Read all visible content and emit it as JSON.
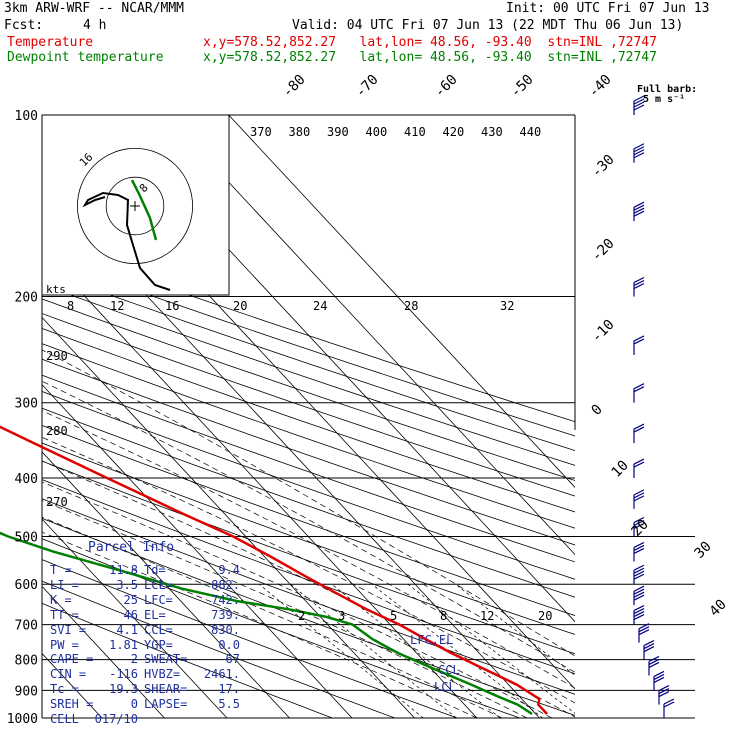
{
  "header": {
    "model": "3km ARW-WRF -- NCAR/MMM",
    "init": "Init: 00 UTC Fri 07 Jun 13",
    "fcst_label": "Fcst:",
    "fcst_value": "4 h",
    "valid": "Valid: 04 UTC Fri 07 Jun 13 (22 MDT Thu 06 Jun 13)",
    "temp_label": "Temperature",
    "temp_loc": "x,y=578.52,852.27   lat,lon= 48.56, -93.40  stn=INL ,72747",
    "dew_label": "Dewpoint temperature",
    "dew_loc": "x,y=578.52,852.27   lat,lon= 48.56, -93.40  stn=INL ,72747"
  },
  "barb_legend": {
    "line1": "Full barb:",
    "line2": "5 m s⁻¹"
  },
  "hodograph_label": "kts",
  "parcel": {
    "title": "Parcel Info",
    "rows": [
      {
        "k1": "T",
        "v1": "11.8",
        "k2": "Td",
        "v2": "9.4"
      },
      {
        "k1": "LI",
        "v1": "3.5",
        "k2": "LCL",
        "v2": "882."
      },
      {
        "k1": "K",
        "v1": "25",
        "k2": "LFC",
        "v2": "742."
      },
      {
        "k1": "TT",
        "v1": "46",
        "k2": "EL",
        "v2": "739."
      },
      {
        "k1": "SVI",
        "v1": "4.1",
        "k2": "CCL",
        "v2": "830."
      },
      {
        "k1": "PW",
        "v1": "1.81",
        "k2": "YGP",
        "v2": "0.0"
      },
      {
        "k1": "CAPE",
        "v1": "2",
        "k2": "SWEAT",
        "v2": "67"
      },
      {
        "k1": "CIN",
        "v1": "-116",
        "k2": "HVBZ",
        "v2": "2461."
      },
      {
        "k1": "Tc",
        "v1": "19.3",
        "k2": "SHEAR",
        "v2": "17."
      },
      {
        "k1": "SREH",
        "v1": "0",
        "k2": "LAPSE",
        "v2": "5.5"
      },
      {
        "k1": "CELL",
        "v1": "017/10",
        "k2": "",
        "v2": ""
      }
    ]
  },
  "levels": {
    "lfc": "LFC,EL",
    "ccl": "CCL",
    "lcl": "LCL"
  },
  "chart_data": {
    "type": "line",
    "subtype": "skew-t log-p sounding",
    "y_axis": {
      "label": "",
      "scale": "log",
      "units": "hPa",
      "range": [
        1000,
        100
      ],
      "ticks": [
        100,
        200,
        300,
        400,
        500,
        600,
        700,
        800,
        900,
        1000
      ]
    },
    "isotherm_labels": [
      -80,
      -70,
      -60,
      -50,
      -40,
      -30,
      -20,
      -10,
      0,
      10,
      20,
      30,
      40
    ],
    "theta_labels": [
      370,
      380,
      390,
      400,
      410,
      420,
      430,
      440
    ],
    "dry_adiabat_labels": [
      290,
      280,
      270
    ],
    "mixing_ratio_labels": [
      2,
      3,
      5,
      8,
      12,
      20
    ],
    "upper_axis_labels": [
      8,
      12,
      16,
      20,
      24,
      28,
      32
    ],
    "series": [
      {
        "name": "Temperature",
        "color": "#e00000",
        "points": [
          [
            985,
            11.8
          ],
          [
            950,
            11.8
          ],
          [
            930,
            12.8
          ],
          [
            880,
            11.3
          ],
          [
            830,
            8.5
          ],
          [
            780,
            5.5
          ],
          [
            740,
            3.5
          ],
          [
            700,
            1.5
          ],
          [
            660,
            -1.5
          ],
          [
            620,
            -4.0
          ],
          [
            580,
            -6.5
          ],
          [
            540,
            -9.0
          ],
          [
            500,
            -12.0
          ],
          [
            460,
            -16.5
          ],
          [
            400,
            -23.5
          ],
          [
            350,
            -30.0
          ],
          [
            300,
            -37.5
          ],
          [
            265,
            -44.0
          ],
          [
            240,
            -49.0
          ],
          [
            220,
            -50.0
          ],
          [
            200,
            -51.0
          ],
          [
            180,
            -52.5
          ],
          [
            160,
            -55.5
          ],
          [
            140,
            -59.0
          ],
          [
            125,
            -59.5
          ],
          [
            110,
            -59.0
          ],
          [
            100,
            -59.0
          ]
        ]
      },
      {
        "name": "Dewpoint temperature",
        "color": "#008000",
        "points": [
          [
            985,
            9.4
          ],
          [
            950,
            8.5
          ],
          [
            920,
            6.5
          ],
          [
            880,
            4.0
          ],
          [
            830,
            0.5
          ],
          [
            780,
            -3.0
          ],
          [
            740,
            -5.0
          ],
          [
            700,
            -6.0
          ],
          [
            680,
            -9.0
          ],
          [
            660,
            -14.0
          ],
          [
            640,
            -21.0
          ],
          [
            610,
            -28.0
          ],
          [
            570,
            -35.0
          ],
          [
            530,
            -43.0
          ],
          [
            500,
            -48.0
          ],
          [
            460,
            -53.0
          ],
          [
            400,
            -57.0
          ],
          [
            350,
            -59.0
          ],
          [
            320,
            -61.0
          ],
          [
            300,
            -61.0
          ],
          [
            270,
            -65.0
          ],
          [
            240,
            -71.0
          ],
          [
            210,
            -75.0
          ],
          [
            180,
            -78.0
          ],
          [
            150,
            -85.0
          ],
          [
            120,
            -88.0
          ],
          [
            100,
            -90.0
          ]
        ]
      }
    ],
    "hodograph_rings_kts": [
      8,
      16
    ],
    "hodograph_ring_labels": [
      8,
      16
    ],
    "wind_barbs": [
      [
        1000,
        180,
        10
      ],
      [
        950,
        200,
        15
      ],
      [
        900,
        220,
        15
      ],
      [
        850,
        240,
        15
      ],
      [
        800,
        260,
        15
      ],
      [
        750,
        270,
        15
      ],
      [
        700,
        280,
        20
      ],
      [
        650,
        290,
        20
      ],
      [
        600,
        300,
        20
      ],
      [
        550,
        310,
        15
      ],
      [
        500,
        310,
        15
      ],
      [
        450,
        320,
        15
      ],
      [
        400,
        330,
        10
      ],
      [
        350,
        340,
        10
      ],
      [
        300,
        350,
        10
      ],
      [
        250,
        350,
        10
      ],
      [
        200,
        340,
        15
      ],
      [
        150,
        330,
        20
      ],
      [
        120,
        320,
        20
      ],
      [
        100,
        320,
        20
      ]
    ]
  }
}
